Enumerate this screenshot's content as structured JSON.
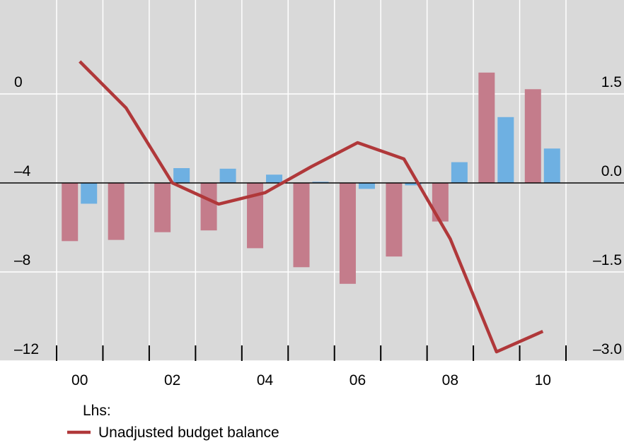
{
  "chart_data": {
    "type": "bar_line",
    "categories": [
      "00",
      null,
      "02",
      null,
      "04",
      null,
      "06",
      null,
      "08",
      null,
      "10"
    ],
    "series": [
      {
        "type": "bar",
        "axis": "y2",
        "color": "#c47c8b",
        "values": [
          -0.98,
          -0.96,
          -0.83,
          -0.8,
          -1.1,
          -1.42,
          -1.7,
          -1.24,
          -0.65,
          1.86,
          1.58
        ]
      },
      {
        "type": "bar",
        "axis": "y2",
        "color": "#6eb0e2",
        "values": [
          -0.35,
          -0.01,
          0.25,
          0.24,
          0.14,
          0.02,
          -0.1,
          -0.04,
          0.35,
          1.11,
          0.58
        ]
      },
      {
        "type": "line",
        "axis": "y",
        "name": "Unadjusted budget balance",
        "color": "#b0383a",
        "values": [
          1.46,
          -0.63,
          -4.0,
          -4.95,
          -4.44,
          -3.27,
          -2.19,
          -2.92,
          -6.51,
          -11.59,
          -10.67
        ]
      }
    ],
    "legend_title": "Lhs:",
    "ylim": [
      -12,
      4
    ],
    "yticks": [
      {
        "value": 0,
        "label": "0"
      },
      {
        "value": -4,
        "label": "–4"
      },
      {
        "value": -8,
        "label": "–8"
      },
      {
        "value": -12,
        "label": "–12"
      }
    ],
    "y2lim": [
      -3,
      3
    ],
    "y2ticks": [
      {
        "value": 1.5,
        "label": "1.5"
      },
      {
        "value": 0,
        "label": "0.0"
      },
      {
        "value": -1.5,
        "label": "–1.5"
      },
      {
        "value": -3,
        "label": "–3.0"
      }
    ],
    "grid": true
  }
}
